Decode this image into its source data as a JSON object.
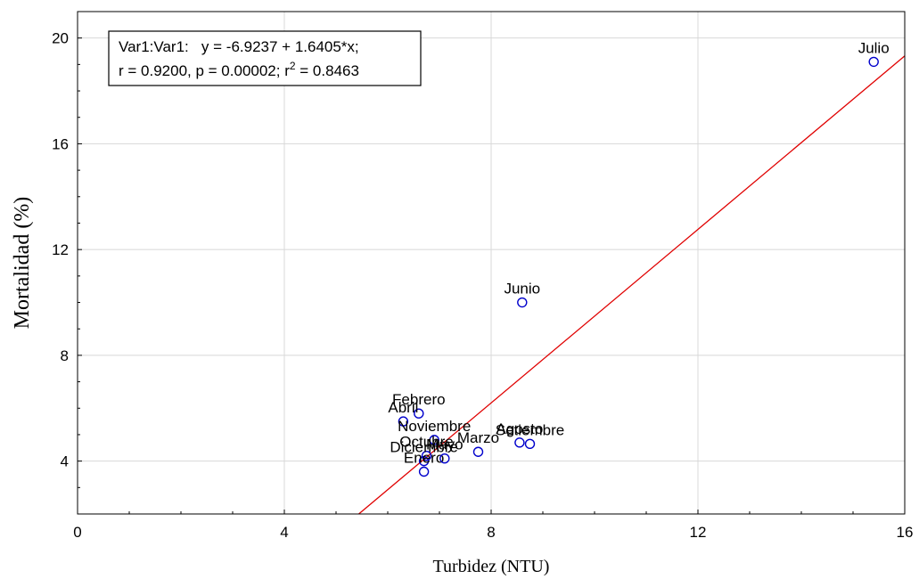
{
  "chart_data": {
    "type": "scatter",
    "title": "",
    "xlabel": "Turbidez (NTU)",
    "ylabel": "Mortalidad (%)",
    "xlim": [
      0,
      16
    ],
    "ylim": [
      2,
      21
    ],
    "xticks": [
      0,
      4,
      8,
      12,
      16
    ],
    "yticks": [
      4,
      8,
      12,
      16,
      20
    ],
    "grid": true,
    "points": [
      {
        "label": "Julio",
        "x": 15.4,
        "y": 19.1
      },
      {
        "label": "Junio",
        "x": 8.6,
        "y": 10.0
      },
      {
        "label": "Febrero",
        "x": 6.6,
        "y": 5.8
      },
      {
        "label": "Abril",
        "x": 6.3,
        "y": 5.5
      },
      {
        "label": "Noviembre",
        "x": 6.9,
        "y": 4.8
      },
      {
        "label": "Marzo",
        "x": 7.75,
        "y": 4.35
      },
      {
        "label": "Agosto",
        "x": 8.55,
        "y": 4.7
      },
      {
        "label": "Setiembre",
        "x": 8.75,
        "y": 4.65
      },
      {
        "label": "Octubre",
        "x": 6.75,
        "y": 4.2
      },
      {
        "label": "Diciembre",
        "x": 6.7,
        "y": 4.0
      },
      {
        "label": "Enero",
        "x": 6.7,
        "y": 3.6
      },
      {
        "label": "Mayo",
        "x": 7.1,
        "y": 4.1
      }
    ],
    "regression": {
      "intercept": -6.9237,
      "slope": 1.6405,
      "color": "#e00000"
    },
    "stats_box": {
      "line1": "Var1:Var1:   y = -6.9237 + 1.6405*x;",
      "line2_prefix": "r = 0.9200, p = 0.00002; r",
      "line2_sup": "2",
      "line2_suffix": " = 0.8463"
    },
    "marker_color": "#0000cc",
    "grid_color": "#d8d8d8"
  }
}
